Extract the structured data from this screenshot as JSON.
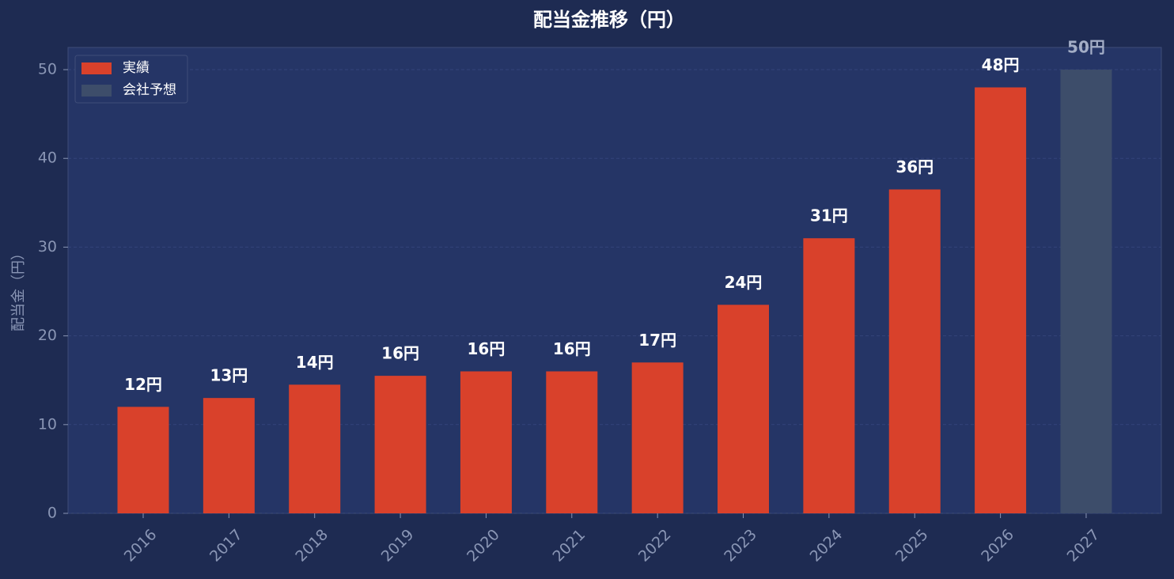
{
  "chart_data": {
    "type": "bar",
    "title": "配当金推移（円）",
    "y_label": "配当金（円）",
    "categories": [
      "2016",
      "2017",
      "2018",
      "2019",
      "2020",
      "2021",
      "2022",
      "2023",
      "2024",
      "2025",
      "2026",
      "2027"
    ],
    "series": [
      {
        "name": "実績",
        "color": "#d9412b",
        "values": [
          12,
          13,
          14.5,
          15.5,
          16,
          16,
          17,
          23.5,
          31,
          36.5,
          48,
          null
        ],
        "value_labels": [
          "12円",
          "13円",
          "14円",
          "16円",
          "16円",
          "16円",
          "17円",
          "24円",
          "31円",
          "36円",
          "48円",
          null
        ]
      },
      {
        "name": "会社予想",
        "color": "#3d4d6a",
        "values": [
          null,
          null,
          null,
          null,
          null,
          null,
          null,
          null,
          null,
          null,
          null,
          50
        ],
        "value_labels": [
          null,
          null,
          null,
          null,
          null,
          null,
          null,
          null,
          null,
          null,
          null,
          "50円"
        ]
      }
    ],
    "ylim": [
      0,
      52.5
    ],
    "yticks": [
      0,
      10,
      20,
      30,
      40,
      50
    ],
    "grid": true,
    "legend": "upper left"
  }
}
